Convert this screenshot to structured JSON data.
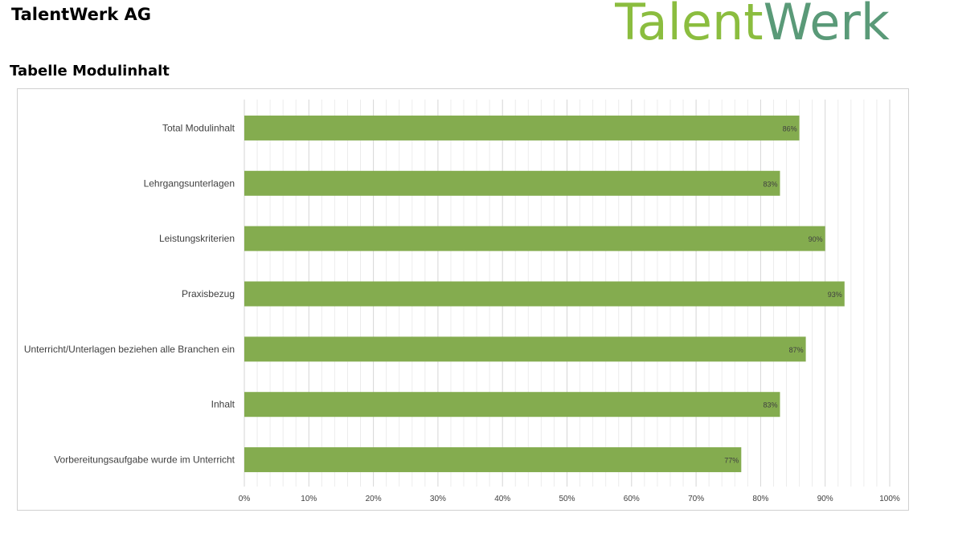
{
  "header": {
    "company": "TalentWerk AG",
    "logo_text_part1": "Talent",
    "logo_text_part2": "Werk",
    "logo_color_light": "#8bbd3f",
    "logo_color_dark": "#5a9a78"
  },
  "page": {
    "heading": "Tabelle Modulinhalt"
  },
  "chart_data": {
    "type": "bar",
    "orientation": "horizontal",
    "title": "",
    "xlabel": "",
    "ylabel": "",
    "categories": [
      "Total Modulinhalt",
      "Lehrgangsunterlagen",
      "Leistungskriterien",
      "Praxisbezug",
      "Unterricht/Unterlagen beziehen alle Branchen ein",
      "Inhalt",
      "Vorbereitungsaufgabe wurde im Unterricht"
    ],
    "values": [
      86,
      83,
      90,
      93,
      87,
      83,
      77
    ],
    "value_labels": [
      "86%",
      "83%",
      "90%",
      "93%",
      "87%",
      "83%",
      "77%"
    ],
    "xlim": [
      0,
      100
    ],
    "x_ticks": [
      "0%",
      "10%",
      "20%",
      "30%",
      "40%",
      "50%",
      "60%",
      "70%",
      "80%",
      "90%",
      "100%"
    ],
    "bar_color": "#84ac4f",
    "grid": true,
    "legend": "none"
  }
}
